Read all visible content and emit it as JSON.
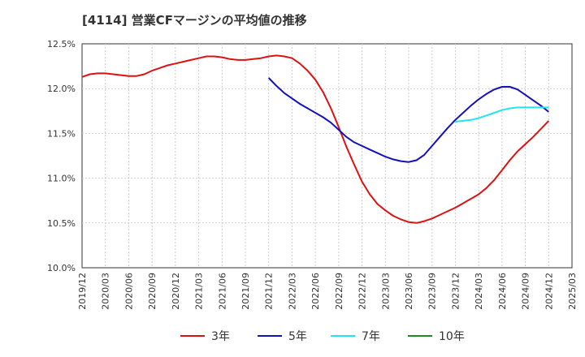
{
  "chart_data": {
    "type": "line",
    "title": "[4114]  営業CFマージンの平均値の推移",
    "xlabel": "",
    "ylabel": "",
    "ylim": [
      10.0,
      12.5
    ],
    "yticks": [
      "12.5%",
      "12.0%",
      "11.5%",
      "11.0%",
      "10.5%",
      "10.0%"
    ],
    "ytick_values": [
      12.5,
      12.0,
      11.5,
      11.0,
      10.5,
      10.0
    ],
    "xticks": [
      "2019/12",
      "2020/03",
      "2020/06",
      "2020/09",
      "2020/12",
      "2021/03",
      "2021/06",
      "2021/09",
      "2021/12",
      "2022/03",
      "2022/06",
      "2022/09",
      "2022/12",
      "2023/03",
      "2023/06",
      "2023/09",
      "2023/12",
      "2024/03",
      "2024/06",
      "2024/09",
      "2024/12",
      "2025/03"
    ],
    "grid": true,
    "legend_position": "bottom",
    "series": [
      {
        "name": "3年",
        "color": "#dd1111",
        "values": [
          [
            "2019/12",
            12.13
          ],
          [
            "2020/01",
            12.16
          ],
          [
            "2020/02",
            12.17
          ],
          [
            "2020/03",
            12.17
          ],
          [
            "2020/04",
            12.16
          ],
          [
            "2020/05",
            12.15
          ],
          [
            "2020/06",
            12.14
          ],
          [
            "2020/07",
            12.14
          ],
          [
            "2020/08",
            12.16
          ],
          [
            "2020/09",
            12.2
          ],
          [
            "2020/10",
            12.23
          ],
          [
            "2020/11",
            12.26
          ],
          [
            "2020/12",
            12.28
          ],
          [
            "2021/01",
            12.3
          ],
          [
            "2021/02",
            12.32
          ],
          [
            "2021/03",
            12.34
          ],
          [
            "2021/04",
            12.36
          ],
          [
            "2021/05",
            12.36
          ],
          [
            "2021/06",
            12.35
          ],
          [
            "2021/07",
            12.33
          ],
          [
            "2021/08",
            12.32
          ],
          [
            "2021/09",
            12.32
          ],
          [
            "2021/10",
            12.33
          ],
          [
            "2021/11",
            12.34
          ],
          [
            "2021/12",
            12.36
          ],
          [
            "2022/01",
            12.37
          ],
          [
            "2022/02",
            12.36
          ],
          [
            "2022/03",
            12.34
          ],
          [
            "2022/04",
            12.28
          ],
          [
            "2022/05",
            12.2
          ],
          [
            "2022/06",
            12.1
          ],
          [
            "2022/07",
            11.96
          ],
          [
            "2022/08",
            11.78
          ],
          [
            "2022/09",
            11.57
          ],
          [
            "2022/10",
            11.35
          ],
          [
            "2022/11",
            11.15
          ],
          [
            "2022/12",
            10.96
          ],
          [
            "2023/01",
            10.82
          ],
          [
            "2023/02",
            10.71
          ],
          [
            "2023/03",
            10.64
          ],
          [
            "2023/04",
            10.58
          ],
          [
            "2023/05",
            10.54
          ],
          [
            "2023/06",
            10.51
          ],
          [
            "2023/07",
            10.5
          ],
          [
            "2023/08",
            10.52
          ],
          [
            "2023/09",
            10.55
          ],
          [
            "2023/10",
            10.59
          ],
          [
            "2023/11",
            10.63
          ],
          [
            "2023/12",
            10.67
          ],
          [
            "2024/01",
            10.72
          ],
          [
            "2024/02",
            10.77
          ],
          [
            "2024/03",
            10.82
          ],
          [
            "2024/04",
            10.89
          ],
          [
            "2024/05",
            10.98
          ],
          [
            "2024/06",
            11.09
          ],
          [
            "2024/07",
            11.2
          ],
          [
            "2024/08",
            11.3
          ],
          [
            "2024/09",
            11.38
          ],
          [
            "2024/10",
            11.46
          ],
          [
            "2024/11",
            11.55
          ],
          [
            "2024/12",
            11.64
          ]
        ]
      },
      {
        "name": "5年",
        "color": "#1111bb",
        "values": [
          [
            "2021/12",
            12.12
          ],
          [
            "2022/01",
            12.03
          ],
          [
            "2022/02",
            11.95
          ],
          [
            "2022/03",
            11.89
          ],
          [
            "2022/04",
            11.83
          ],
          [
            "2022/05",
            11.78
          ],
          [
            "2022/06",
            11.73
          ],
          [
            "2022/07",
            11.68
          ],
          [
            "2022/08",
            11.62
          ],
          [
            "2022/09",
            11.54
          ],
          [
            "2022/10",
            11.46
          ],
          [
            "2022/11",
            11.4
          ],
          [
            "2022/12",
            11.36
          ],
          [
            "2023/01",
            11.32
          ],
          [
            "2023/02",
            11.28
          ],
          [
            "2023/03",
            11.24
          ],
          [
            "2023/04",
            11.21
          ],
          [
            "2023/05",
            11.19
          ],
          [
            "2023/06",
            11.18
          ],
          [
            "2023/07",
            11.2
          ],
          [
            "2023/08",
            11.26
          ],
          [
            "2023/09",
            11.36
          ],
          [
            "2023/10",
            11.46
          ],
          [
            "2023/11",
            11.56
          ],
          [
            "2023/12",
            11.65
          ],
          [
            "2024/01",
            11.73
          ],
          [
            "2024/02",
            11.81
          ],
          [
            "2024/03",
            11.88
          ],
          [
            "2024/04",
            11.94
          ],
          [
            "2024/05",
            11.99
          ],
          [
            "2024/06",
            12.02
          ],
          [
            "2024/07",
            12.02
          ],
          [
            "2024/08",
            11.99
          ],
          [
            "2024/09",
            11.93
          ],
          [
            "2024/10",
            11.87
          ],
          [
            "2024/11",
            11.81
          ],
          [
            "2024/12",
            11.74
          ]
        ]
      },
      {
        "name": "7年",
        "color": "#22e5f2",
        "values": [
          [
            "2023/12",
            11.63
          ],
          [
            "2024/01",
            11.64
          ],
          [
            "2024/02",
            11.65
          ],
          [
            "2024/03",
            11.67
          ],
          [
            "2024/04",
            11.7
          ],
          [
            "2024/05",
            11.73
          ],
          [
            "2024/06",
            11.76
          ],
          [
            "2024/07",
            11.78
          ],
          [
            "2024/08",
            11.79
          ],
          [
            "2024/09",
            11.79
          ],
          [
            "2024/10",
            11.79
          ],
          [
            "2024/11",
            11.79
          ],
          [
            "2024/12",
            11.79
          ]
        ]
      },
      {
        "name": "10年",
        "color": "#228822",
        "values": []
      }
    ]
  }
}
